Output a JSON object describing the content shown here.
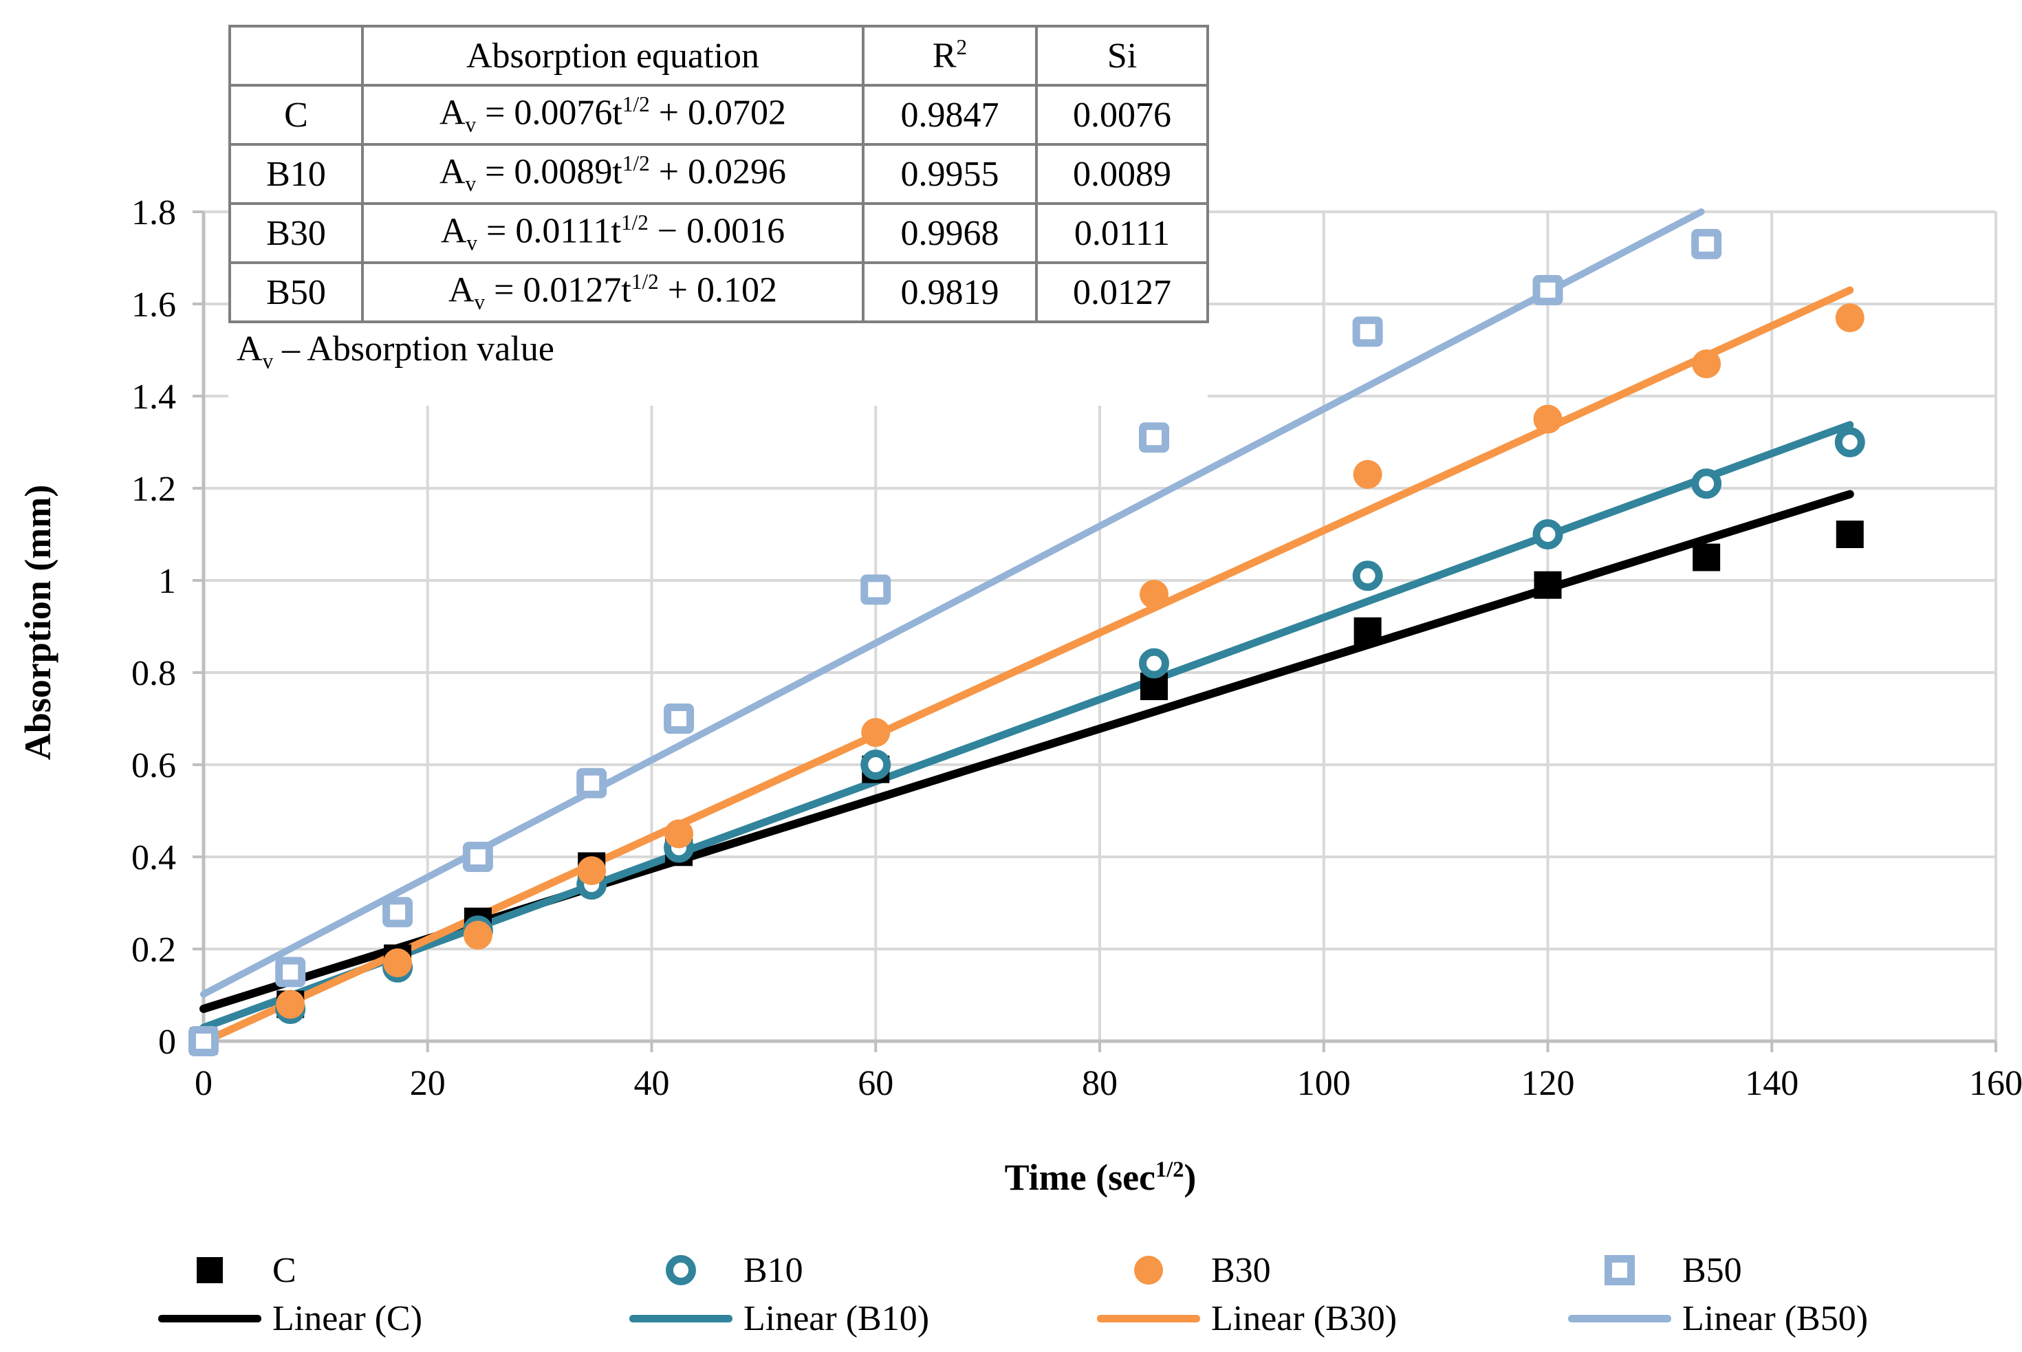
{
  "chart_data": {
    "type": "scatter",
    "title": "",
    "xlabel": "Time (sec1/2)",
    "ylabel": "Absorption (mm)",
    "xlim": [
      0,
      160
    ],
    "ylim": [
      0,
      1.8
    ],
    "x_ticks": [
      0,
      20,
      40,
      60,
      80,
      100,
      120,
      140,
      160
    ],
    "y_ticks": [
      "0",
      "0.2",
      "0.4",
      "0.6",
      "0.8",
      "1",
      "1.2",
      "1.4",
      "1.6",
      "1.8"
    ],
    "grid": true,
    "legend_position": "bottom",
    "colors": {
      "grid": "#D9D9D9",
      "axis": "#BFBFBF",
      "text": "#000000"
    },
    "series": [
      {
        "name": "C",
        "marker": "square-filled",
        "color": "#000000",
        "line_width": 12,
        "points": [
          [
            0,
            0
          ],
          [
            7.75,
            0.08
          ],
          [
            17.32,
            0.18
          ],
          [
            24.49,
            0.26
          ],
          [
            34.64,
            0.38
          ],
          [
            42.43,
            0.41
          ],
          [
            60,
            0.59
          ],
          [
            84.85,
            0.77
          ],
          [
            103.92,
            0.89
          ],
          [
            120,
            0.99
          ],
          [
            134.16,
            1.05
          ],
          [
            146.97,
            1.1
          ]
        ],
        "trend": {
          "label": "Linear (C)",
          "slope": 0.0076,
          "intercept": 0.0702
        }
      },
      {
        "name": "B10",
        "marker": "circle-open",
        "color": "#31849B",
        "line_width": 11,
        "points": [
          [
            0,
            0
          ],
          [
            7.75,
            0.07
          ],
          [
            17.32,
            0.16
          ],
          [
            24.49,
            0.24
          ],
          [
            34.64,
            0.34
          ],
          [
            42.43,
            0.42
          ],
          [
            60,
            0.6
          ],
          [
            84.85,
            0.82
          ],
          [
            103.92,
            1.01
          ],
          [
            120,
            1.1
          ],
          [
            134.16,
            1.21
          ],
          [
            146.97,
            1.3
          ]
        ],
        "trend": {
          "label": "Linear (B10)",
          "slope": 0.0089,
          "intercept": 0.0296
        }
      },
      {
        "name": "B30",
        "marker": "circle-filled",
        "color": "#F79646",
        "line_width": 11,
        "points": [
          [
            0,
            0
          ],
          [
            7.75,
            0.08
          ],
          [
            17.32,
            0.17
          ],
          [
            24.49,
            0.23
          ],
          [
            34.64,
            0.37
          ],
          [
            42.43,
            0.45
          ],
          [
            60,
            0.67
          ],
          [
            84.85,
            0.97
          ],
          [
            103.92,
            1.23
          ],
          [
            120,
            1.35
          ],
          [
            134.16,
            1.47
          ],
          [
            146.97,
            1.57
          ]
        ],
        "trend": {
          "label": "Linear (B30)",
          "slope": 0.0111,
          "intercept": -0.0016
        }
      },
      {
        "name": "B50",
        "marker": "square-open",
        "color": "#95B3D7",
        "line_width": 10,
        "points": [
          [
            0,
            0
          ],
          [
            7.75,
            0.15
          ],
          [
            17.32,
            0.28
          ],
          [
            24.49,
            0.4
          ],
          [
            34.64,
            0.56
          ],
          [
            42.43,
            0.7
          ],
          [
            60,
            0.98
          ],
          [
            84.85,
            1.31
          ],
          [
            103.92,
            1.54
          ],
          [
            120,
            1.63
          ],
          [
            134.16,
            1.73
          ]
        ],
        "trend": {
          "label": "Linear (B50)",
          "slope": 0.0127,
          "intercept": 0.102
        }
      }
    ]
  },
  "table": {
    "corner": "",
    "col_eq": "Absorption equation",
    "col_r_base": "R",
    "col_r_sup": "2",
    "col_si": "Si",
    "rows": [
      {
        "name": "C",
        "eq_pre": "A",
        "eq_sub": "v",
        "eq_mid": " = 0.0076t",
        "eq_sup": "1/2",
        "eq_post": " + 0.0702",
        "r2": "0.9847",
        "si": "0.0076"
      },
      {
        "name": "B10",
        "eq_pre": "A",
        "eq_sub": "v",
        "eq_mid": " = 0.0089t",
        "eq_sup": "1/2",
        "eq_post": " + 0.0296",
        "r2": "0.9955",
        "si": "0.0089"
      },
      {
        "name": "B30",
        "eq_pre": "A",
        "eq_sub": "v",
        "eq_mid": " = 0.0111t",
        "eq_sup": "1/2",
        "eq_post": " − 0.0016",
        "r2": "0.9968",
        "si": "0.0111"
      },
      {
        "name": "B50",
        "eq_pre": "A",
        "eq_sub": "v",
        "eq_mid": " = 0.0127t",
        "eq_sup": "1/2",
        "eq_post": " + 0.102",
        "r2": "0.9819",
        "si": "0.0127"
      }
    ]
  },
  "note": {
    "pre": "A",
    "sub": "v",
    "post": " – Absorption value"
  },
  "axis": {
    "y_title": "Absorption (mm)",
    "x_title_pre": "Time (sec",
    "x_title_sup": "1/2",
    "x_title_post": ")"
  }
}
